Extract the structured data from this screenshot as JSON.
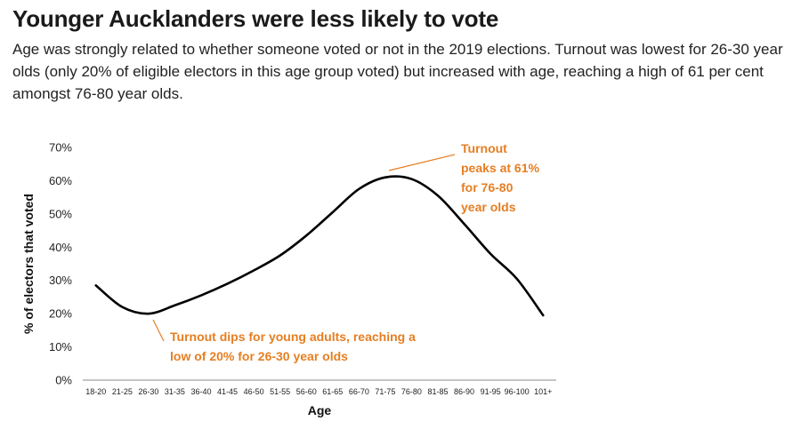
{
  "header": {
    "title": "Younger Aucklanders were less likely to vote",
    "subtitle": "Age was strongly related to whether someone voted or not in the 2019 elections. Turnout was lowest for 26-30 year olds (only 20% of eligible electors in this age group voted) but increased with age, reaching a high of 61 per cent amongst 76-80 year olds."
  },
  "chart_data": {
    "type": "line",
    "title": "",
    "xlabel": "Age",
    "ylabel": "% of electors that voted",
    "categories": [
      "18-20",
      "21-25",
      "26-30",
      "31-35",
      "36-40",
      "41-45",
      "46-50",
      "51-55",
      "56-60",
      "61-65",
      "66-70",
      "71-75",
      "76-80",
      "81-85",
      "86-90",
      "91-95",
      "96-100",
      "101+"
    ],
    "values": [
      28.5,
      22,
      20,
      22.5,
      25.5,
      29,
      33,
      37.5,
      43.5,
      50.5,
      57.5,
      61,
      60.5,
      55.5,
      47,
      38,
      30.5,
      19.5
    ],
    "ylim": [
      0,
      70
    ],
    "yticks": [
      "0%",
      "10%",
      "20%",
      "30%",
      "40%",
      "50%",
      "60%",
      "70%"
    ],
    "ytick_values": [
      0,
      10,
      20,
      30,
      40,
      50,
      60,
      70
    ],
    "grid": false,
    "line_color": "#000000",
    "annotation_color": "#E67E22",
    "annotations": [
      {
        "id": "peak",
        "lines": [
          "Turnout",
          "peaks at 61%",
          "for 76-80",
          "year olds"
        ],
        "target_category": "76-80"
      },
      {
        "id": "dip",
        "lines": [
          "Turnout dips for young adults, reaching a",
          "low of 20% for 26-30 year olds"
        ],
        "target_category": "26-30"
      }
    ]
  }
}
